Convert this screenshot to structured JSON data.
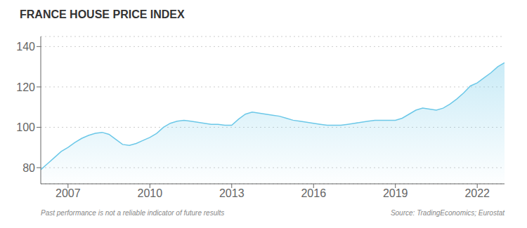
{
  "chart_data": {
    "type": "area",
    "title": "FRANCE HOUSE PRICE INDEX",
    "annotations": [
      "Past performance is not a reliable indicator of future results",
      "Source: TradingEconomics; Eurostat"
    ],
    "x": [
      2006.0,
      2006.25,
      2006.5,
      2006.75,
      2007.0,
      2007.25,
      2007.5,
      2007.75,
      2008.0,
      2008.25,
      2008.5,
      2008.75,
      2009.0,
      2009.25,
      2009.5,
      2009.75,
      2010.0,
      2010.25,
      2010.5,
      2010.75,
      2011.0,
      2011.25,
      2011.5,
      2011.75,
      2012.0,
      2012.25,
      2012.5,
      2012.75,
      2013.0,
      2013.25,
      2013.5,
      2013.75,
      2014.0,
      2014.25,
      2014.5,
      2014.75,
      2015.0,
      2015.25,
      2015.5,
      2015.75,
      2016.0,
      2016.25,
      2016.5,
      2016.75,
      2017.0,
      2017.25,
      2017.5,
      2017.75,
      2018.0,
      2018.25,
      2018.5,
      2018.75,
      2019.0,
      2019.25,
      2019.5,
      2019.75,
      2020.0,
      2020.25,
      2020.5,
      2020.75,
      2021.0,
      2021.25,
      2021.5,
      2021.75,
      2022.0,
      2022.25,
      2022.5,
      2022.75,
      2023.0
    ],
    "values": [
      79.0,
      82.0,
      85.0,
      88.0,
      90.0,
      92.5,
      94.5,
      96.0,
      97.0,
      97.5,
      96.5,
      94.0,
      91.5,
      91.0,
      92.0,
      93.5,
      95.0,
      97.0,
      100.0,
      102.0,
      103.0,
      103.5,
      103.0,
      102.5,
      102.0,
      101.5,
      101.5,
      101.0,
      101.0,
      104.0,
      106.5,
      107.5,
      107.0,
      106.5,
      106.0,
      105.5,
      104.5,
      103.5,
      103.0,
      102.5,
      102.0,
      101.5,
      101.0,
      101.0,
      101.0,
      101.5,
      102.0,
      102.5,
      103.0,
      103.5,
      103.5,
      103.5,
      103.5,
      104.5,
      106.5,
      108.5,
      109.5,
      109.0,
      108.5,
      109.5,
      111.5,
      114.0,
      117.0,
      120.5,
      122.0,
      124.5,
      127.0,
      130.0,
      132.0
    ],
    "color": "#6CC8E8",
    "xlim": [
      2006,
      2023
    ],
    "xticks": [
      2007,
      2010,
      2013,
      2016,
      2019,
      2022
    ],
    "ylim": [
      72,
      145
    ],
    "yticks": [
      80,
      100,
      120,
      140
    ],
    "grid": true
  }
}
